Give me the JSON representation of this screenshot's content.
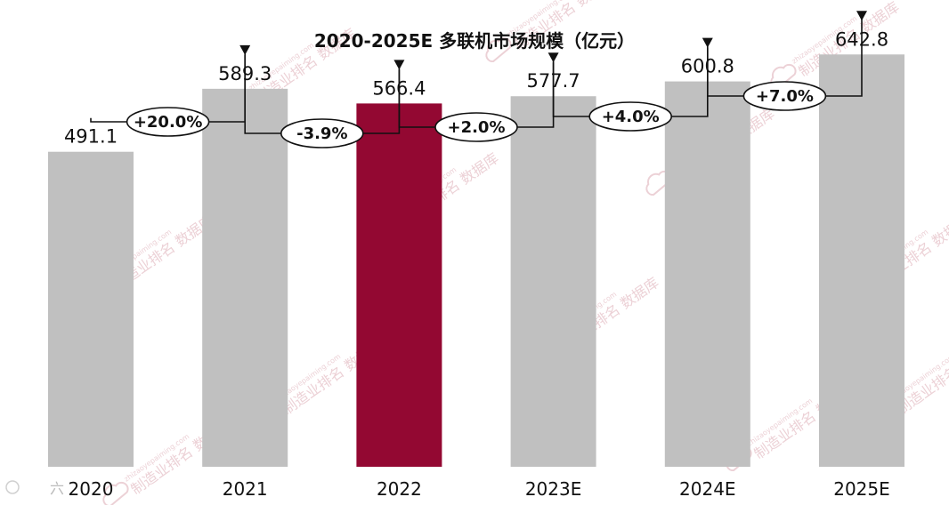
{
  "chart_data": {
    "type": "bar",
    "title": "2020-2025E 多联机市场规模（亿元）",
    "categories": [
      "2020",
      "2021",
      "2022",
      "2023E",
      "2024E",
      "2025E"
    ],
    "values": [
      491.1,
      589.3,
      566.4,
      577.7,
      600.8,
      642.8
    ],
    "value_labels": [
      "491.1",
      "589.3",
      "566.4",
      "577.7",
      "600.8",
      "642.8"
    ],
    "growth_labels": [
      "+20.0%",
      "-3.9%",
      "+2.0%",
      "+4.0%",
      "+7.0%"
    ],
    "highlight_index": 2,
    "ylim": [
      0,
      700
    ],
    "grid": false,
    "colors": {
      "bar": "#c0c0c0",
      "highlight": "#930832",
      "arrow": "#111111",
      "watermark": "#e9c9cf"
    }
  },
  "watermark": {
    "text": "制造业排名 数据库",
    "url": "zhizaoyepaiming.com",
    "icon": "cloud-icon"
  },
  "source_mark": "六"
}
